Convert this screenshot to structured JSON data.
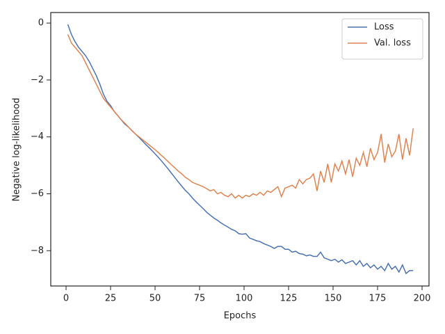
{
  "chart_data": {
    "type": "line",
    "x_label": "Epochs",
    "y_label": "Negative log-likelihood",
    "x": [
      1,
      3,
      5,
      7,
      9,
      11,
      13,
      15,
      17,
      19,
      21,
      23,
      25,
      27,
      29,
      31,
      33,
      35,
      37,
      39,
      41,
      43,
      45,
      47,
      49,
      51,
      53,
      55,
      57,
      59,
      61,
      63,
      65,
      67,
      69,
      71,
      73,
      75,
      77,
      79,
      81,
      83,
      85,
      87,
      89,
      91,
      93,
      95,
      97,
      99,
      101,
      103,
      105,
      107,
      109,
      111,
      113,
      115,
      117,
      119,
      121,
      123,
      125,
      127,
      129,
      131,
      133,
      135,
      137,
      139,
      141,
      143,
      145,
      147,
      149,
      151,
      153,
      155,
      157,
      159,
      161,
      163,
      165,
      167,
      169,
      171,
      173,
      175,
      177,
      179,
      181,
      183,
      185,
      187,
      189,
      191,
      193,
      195
    ],
    "series": [
      {
        "name": "Loss",
        "color": "#4c72b0",
        "values": [
          -0.05,
          -0.4,
          -0.65,
          -0.85,
          -1.0,
          -1.15,
          -1.35,
          -1.6,
          -1.85,
          -2.15,
          -2.5,
          -2.75,
          -2.9,
          -3.1,
          -3.25,
          -3.4,
          -3.55,
          -3.65,
          -3.78,
          -3.9,
          -4.02,
          -4.15,
          -4.28,
          -4.4,
          -4.53,
          -4.66,
          -4.8,
          -4.95,
          -5.1,
          -5.26,
          -5.42,
          -5.58,
          -5.73,
          -5.88,
          -6.0,
          -6.15,
          -6.28,
          -6.4,
          -6.52,
          -6.65,
          -6.75,
          -6.85,
          -6.93,
          -7.02,
          -7.1,
          -7.17,
          -7.25,
          -7.3,
          -7.4,
          -7.42,
          -7.4,
          -7.55,
          -7.6,
          -7.65,
          -7.68,
          -7.75,
          -7.8,
          -7.85,
          -7.92,
          -7.85,
          -7.85,
          -7.95,
          -7.95,
          -8.05,
          -8.02,
          -8.1,
          -8.12,
          -8.18,
          -8.15,
          -8.2,
          -8.2,
          -8.05,
          -8.25,
          -8.3,
          -8.35,
          -8.3,
          -8.4,
          -8.32,
          -8.45,
          -8.4,
          -8.35,
          -8.5,
          -8.35,
          -8.55,
          -8.45,
          -8.6,
          -8.5,
          -8.65,
          -8.55,
          -8.7,
          -8.45,
          -8.65,
          -8.55,
          -8.75,
          -8.5,
          -8.8,
          -8.7,
          -8.7
        ]
      },
      {
        "name": "Val. loss",
        "color": "#dd8452",
        "values": [
          -0.4,
          -0.7,
          -0.85,
          -1.0,
          -1.15,
          -1.4,
          -1.65,
          -1.9,
          -2.15,
          -2.4,
          -2.65,
          -2.8,
          -2.95,
          -3.1,
          -3.25,
          -3.4,
          -3.52,
          -3.65,
          -3.78,
          -3.9,
          -4.0,
          -4.1,
          -4.2,
          -4.3,
          -4.4,
          -4.5,
          -4.62,
          -4.73,
          -4.85,
          -4.97,
          -5.08,
          -5.2,
          -5.3,
          -5.42,
          -5.5,
          -5.6,
          -5.65,
          -5.7,
          -5.75,
          -5.82,
          -5.9,
          -5.85,
          -6.0,
          -5.95,
          -6.05,
          -6.1,
          -6.0,
          -6.15,
          -6.05,
          -6.15,
          -6.05,
          -6.1,
          -6.0,
          -6.05,
          -5.95,
          -6.05,
          -5.9,
          -5.95,
          -5.85,
          -5.75,
          -6.1,
          -5.8,
          -5.75,
          -5.7,
          -5.8,
          -5.5,
          -5.65,
          -5.5,
          -5.45,
          -5.3,
          -5.9,
          -5.2,
          -5.6,
          -4.95,
          -5.6,
          -4.95,
          -5.2,
          -4.85,
          -5.3,
          -4.8,
          -5.4,
          -4.75,
          -5.0,
          -4.55,
          -5.05,
          -4.4,
          -4.8,
          -4.55,
          -3.9,
          -4.9,
          -4.25,
          -4.7,
          -4.5,
          -3.9,
          -4.8,
          -4.05,
          -4.65,
          -3.7
        ]
      }
    ],
    "xlim": [
      -8.6,
      203.9
    ],
    "ylim": [
      -9.24,
      0.37
    ],
    "xticks": [
      0,
      25,
      50,
      75,
      100,
      125,
      150,
      175,
      200
    ],
    "yticks": [
      {
        "value": -8,
        "label": "−8"
      },
      {
        "value": -6,
        "label": "−6"
      },
      {
        "value": -4,
        "label": "−4"
      },
      {
        "value": -2,
        "label": "−2"
      },
      0
    ],
    "legend": "upper right"
  }
}
